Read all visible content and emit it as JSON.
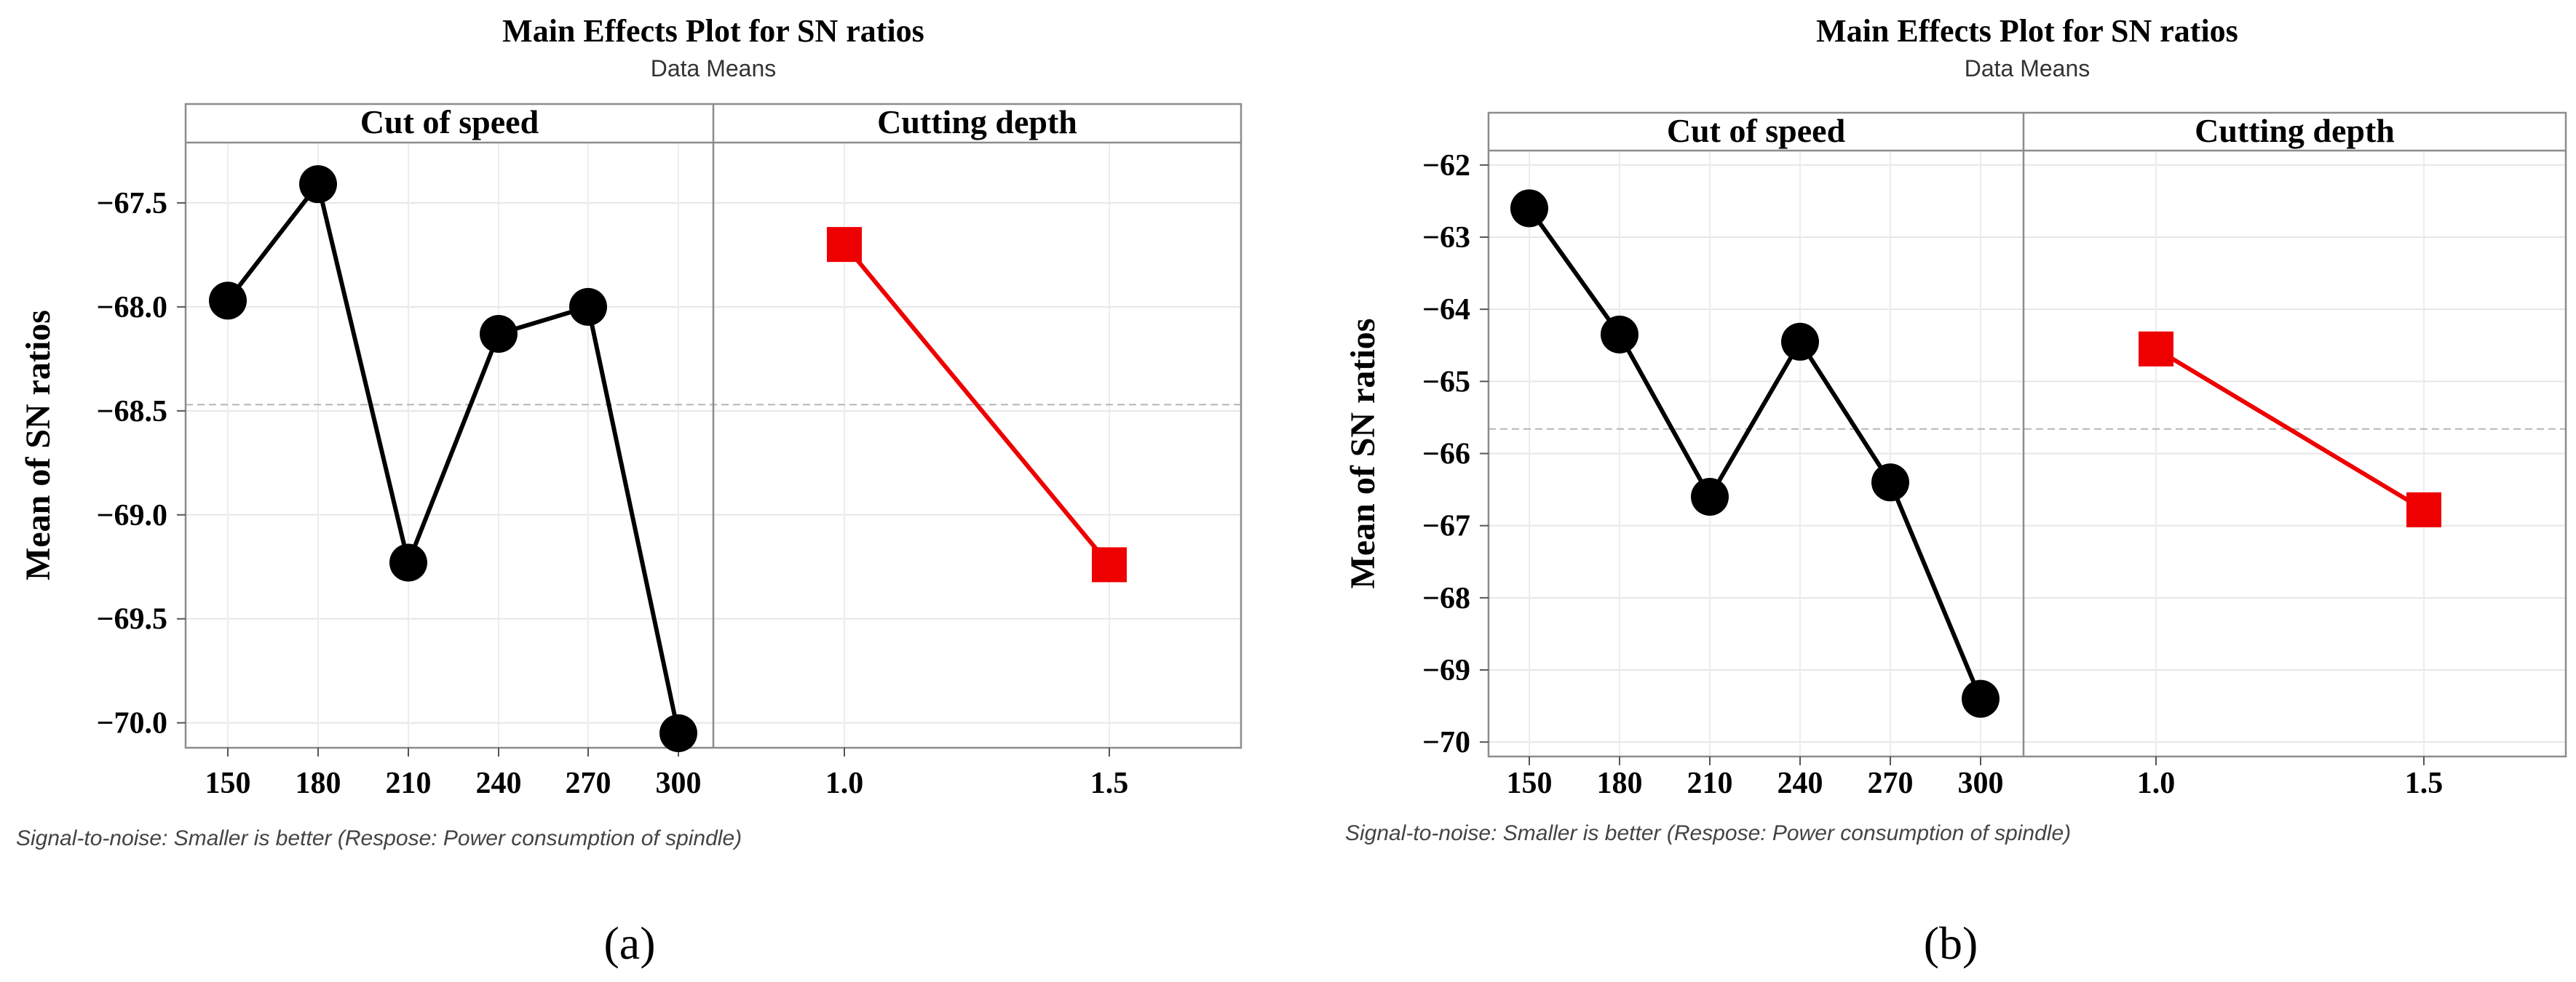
{
  "chart_data": [
    {
      "type": "line",
      "panel_label": "(a)",
      "title": "Main Effects Plot for SN ratios",
      "subtitle": "Data Means",
      "ylabel": "Mean of SN ratios",
      "footnote": "Signal-to-noise: Smaller is better (Respose: Power consumption of spindle)",
      "ylim": [
        -70.12,
        -67.21
      ],
      "yticks": [
        -67.5,
        -68.0,
        -68.5,
        -69.0,
        -69.5,
        -70.0
      ],
      "ytick_labels": [
        "−67.5",
        "−68.0",
        "−68.5",
        "−69.0",
        "−69.5",
        "−70.0"
      ],
      "grand_mean": -68.47,
      "grid": true,
      "facets": [
        {
          "strip_label": "Cut of speed",
          "x": [
            "150",
            "180",
            "210",
            "240",
            "270",
            "300"
          ],
          "values": [
            -67.97,
            -67.41,
            -69.23,
            -68.13,
            -68.0,
            -70.05
          ],
          "marker": "circle",
          "color": "#000000"
        },
        {
          "strip_label": "Cutting depth",
          "x": [
            "1.0",
            "1.5"
          ],
          "values": [
            -67.7,
            -69.24
          ],
          "marker": "square",
          "color": "#ee0000"
        }
      ]
    },
    {
      "type": "line",
      "panel_label": "(b)",
      "title": "Main Effects Plot for SN ratios",
      "subtitle": "Data Means",
      "ylabel": "Mean of SN ratios",
      "footnote": "Signal-to-noise: Smaller is better (Respose: Power consumption of spindle)",
      "ylim": [
        -70.2,
        -61.8
      ],
      "yticks": [
        -62,
        -63,
        -64,
        -65,
        -66,
        -67,
        -68,
        -69,
        -70
      ],
      "ytick_labels": [
        "−62",
        "−63",
        "−64",
        "−65",
        "−66",
        "−67",
        "−68",
        "−69",
        "−70"
      ],
      "grand_mean": -65.66,
      "grid": true,
      "facets": [
        {
          "strip_label": "Cut of speed",
          "x": [
            "150",
            "180",
            "210",
            "240",
            "270",
            "300"
          ],
          "values": [
            -62.6,
            -64.35,
            -66.6,
            -64.45,
            -66.4,
            -69.4
          ],
          "marker": "circle",
          "color": "#000000"
        },
        {
          "strip_label": "Cutting depth",
          "x": [
            "1.0",
            "1.5"
          ],
          "values": [
            -64.55,
            -66.78
          ],
          "marker": "square",
          "color": "#ee0000"
        }
      ]
    }
  ]
}
